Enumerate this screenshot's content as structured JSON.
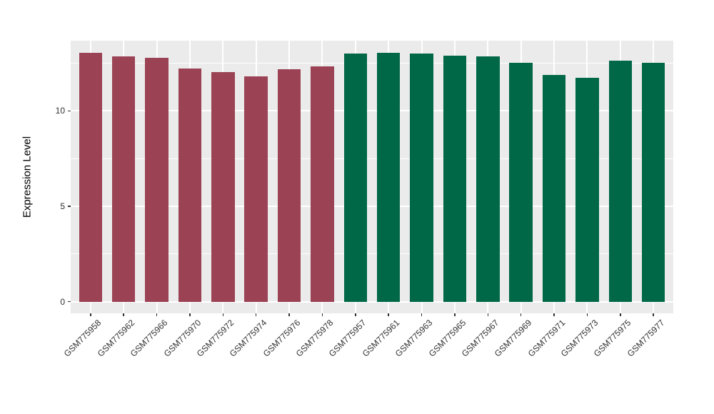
{
  "figure": {
    "background": "#FFFFFF",
    "panel_background": "#EBEBEB",
    "grid_color": "#FFFFFF",
    "axis_text_color": "#303030",
    "axis_title_color": "#000000"
  },
  "chart_data": {
    "type": "bar",
    "title": "",
    "xlabel": "",
    "ylabel": "Expression Level",
    "categories": [
      "GSM775958",
      "GSM775962",
      "GSM775966",
      "GSM775970",
      "GSM775972",
      "GSM775974",
      "GSM775976",
      "GSM775978",
      "GSM775957",
      "GSM775961",
      "GSM775963",
      "GSM775965",
      "GSM775967",
      "GSM775969",
      "GSM775971",
      "GSM775973",
      "GSM775975",
      "GSM775977"
    ],
    "values": [
      13.05,
      12.85,
      12.8,
      12.22,
      12.03,
      11.82,
      12.18,
      12.33,
      13.02,
      13.05,
      13.02,
      12.91,
      12.86,
      12.53,
      11.9,
      11.72,
      12.62,
      12.51
    ],
    "groups": [
      "group1",
      "group1",
      "group1",
      "group1",
      "group1",
      "group1",
      "group1",
      "group1",
      "group2",
      "group2",
      "group2",
      "group2",
      "group2",
      "group2",
      "group2",
      "group2",
      "group2",
      "group2"
    ],
    "group_colors": {
      "group1": "#9B4254",
      "group2": "#006847"
    },
    "yticks": [
      0,
      5,
      10
    ],
    "ytick_labels": [
      "0",
      "5",
      "10"
    ],
    "yticks_minor": [
      2.5,
      7.5,
      12.5
    ],
    "ylim": [
      -0.61,
      13.68
    ],
    "bar_width_fraction": 0.7,
    "grid": true,
    "legend_position": "none",
    "x_label_angle_deg": 45
  }
}
